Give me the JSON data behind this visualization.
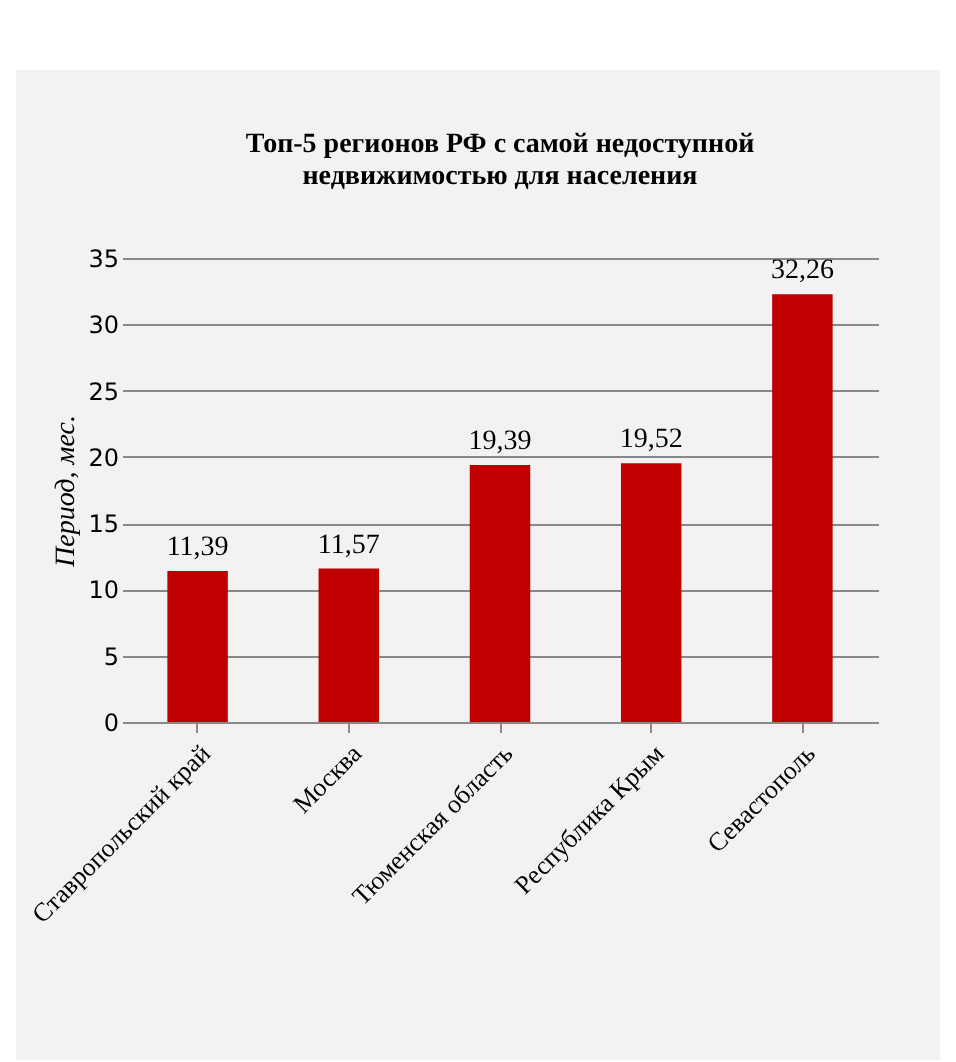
{
  "chart_data": {
    "type": "bar",
    "title": [
      "Топ-5 регионов РФ с самой  недоступной",
      "недвижимостью для населения"
    ],
    "ylabel": "Период, мес.",
    "categories": [
      "Ставропольский край",
      "Москва",
      "Тюменская область",
      "Республика Крым",
      "Севастополь"
    ],
    "values": [
      11.39,
      11.57,
      19.39,
      19.52,
      32.26
    ],
    "value_labels": [
      "11,39",
      "11,57",
      "19,39",
      "19,52",
      "32,26"
    ],
    "color": "#c00000",
    "ylim": [
      0,
      35
    ],
    "yticks": [
      0,
      5,
      10,
      15,
      20,
      25,
      30,
      35
    ],
    "grid": "y"
  }
}
